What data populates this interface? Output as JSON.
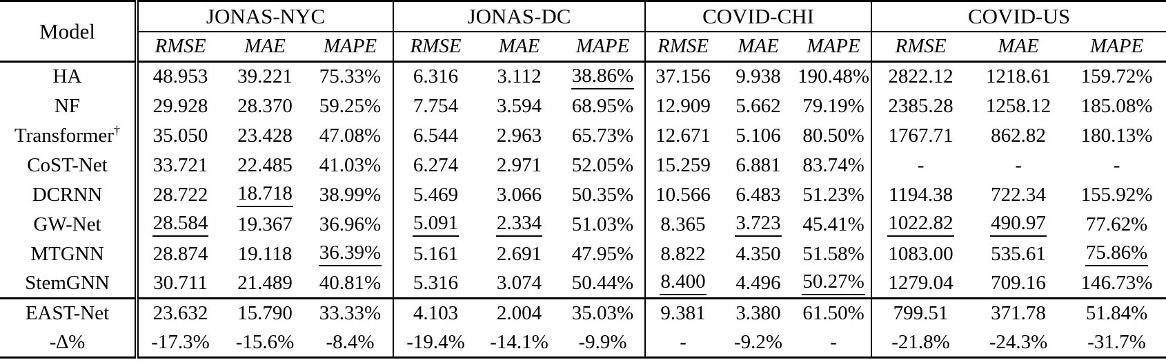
{
  "table": {
    "model_header": "Model",
    "groups": [
      {
        "name": "JONAS-NYC",
        "metrics": [
          "RMSE",
          "MAE",
          "MAPE"
        ]
      },
      {
        "name": "JONAS-DC",
        "metrics": [
          "RMSE",
          "MAE",
          "MAPE"
        ]
      },
      {
        "name": "COVID-CHI",
        "metrics": [
          "RMSE",
          "MAE",
          "MAPE"
        ]
      },
      {
        "name": "COVID-US",
        "metrics": [
          "RMSE",
          "MAE",
          "MAPE"
        ]
      }
    ],
    "rows": [
      {
        "model": "HA",
        "sup": "",
        "bold": false,
        "final": false,
        "cells": [
          {
            "t": "48.953"
          },
          {
            "t": "39.221"
          },
          {
            "t": "75.33%"
          },
          {
            "t": "6.316"
          },
          {
            "t": "3.112"
          },
          {
            "t": "38.86%",
            "u": true
          },
          {
            "t": "37.156"
          },
          {
            "t": "9.938"
          },
          {
            "t": "190.48%"
          },
          {
            "t": "2822.12"
          },
          {
            "t": "1218.61"
          },
          {
            "t": "159.72%"
          }
        ]
      },
      {
        "model": "NF",
        "sup": "",
        "bold": false,
        "final": false,
        "cells": [
          {
            "t": "29.928"
          },
          {
            "t": "28.370"
          },
          {
            "t": "59.25%"
          },
          {
            "t": "7.754"
          },
          {
            "t": "3.594"
          },
          {
            "t": "68.95%"
          },
          {
            "t": "12.909"
          },
          {
            "t": "5.662"
          },
          {
            "t": "79.19%"
          },
          {
            "t": "2385.28"
          },
          {
            "t": "1258.12"
          },
          {
            "t": "185.08%"
          }
        ]
      },
      {
        "model": "Transformer",
        "sup": "†",
        "bold": false,
        "final": false,
        "cells": [
          {
            "t": "35.050"
          },
          {
            "t": "23.428"
          },
          {
            "t": "47.08%"
          },
          {
            "t": "6.544"
          },
          {
            "t": "2.963"
          },
          {
            "t": "65.73%"
          },
          {
            "t": "12.671"
          },
          {
            "t": "5.106"
          },
          {
            "t": "80.50%"
          },
          {
            "t": "1767.71"
          },
          {
            "t": "862.82"
          },
          {
            "t": "180.13%"
          }
        ]
      },
      {
        "model": "CoST-Net",
        "sup": "",
        "bold": false,
        "final": false,
        "cells": [
          {
            "t": "33.721"
          },
          {
            "t": "22.485"
          },
          {
            "t": "41.03%"
          },
          {
            "t": "6.274"
          },
          {
            "t": "2.971"
          },
          {
            "t": "52.05%"
          },
          {
            "t": "15.259"
          },
          {
            "t": "6.881"
          },
          {
            "t": "83.74%"
          },
          {
            "t": "-"
          },
          {
            "t": "-"
          },
          {
            "t": "-"
          }
        ]
      },
      {
        "model": "DCRNN",
        "sup": "",
        "bold": false,
        "final": false,
        "cells": [
          {
            "t": "28.722"
          },
          {
            "t": "18.718",
            "u": true
          },
          {
            "t": "38.99%"
          },
          {
            "t": "5.469"
          },
          {
            "t": "3.066"
          },
          {
            "t": "50.35%"
          },
          {
            "t": "10.566"
          },
          {
            "t": "6.483"
          },
          {
            "t": "51.23%"
          },
          {
            "t": "1194.38"
          },
          {
            "t": "722.34"
          },
          {
            "t": "155.92%"
          }
        ]
      },
      {
        "model": "GW-Net",
        "sup": "",
        "bold": false,
        "final": false,
        "cells": [
          {
            "t": "28.584",
            "u": true
          },
          {
            "t": "19.367"
          },
          {
            "t": "36.96%"
          },
          {
            "t": "5.091",
            "u": true
          },
          {
            "t": "2.334",
            "u": true
          },
          {
            "t": "51.03%"
          },
          {
            "t": "8.365",
            "b": true
          },
          {
            "t": "3.723",
            "u": true
          },
          {
            "t": "45.41%",
            "b": true
          },
          {
            "t": "1022.82",
            "u": true
          },
          {
            "t": "490.97",
            "u": true
          },
          {
            "t": "77.62%"
          }
        ]
      },
      {
        "model": "MTGNN",
        "sup": "",
        "bold": false,
        "final": false,
        "cells": [
          {
            "t": "28.874"
          },
          {
            "t": "19.118"
          },
          {
            "t": "36.39%",
            "u": true
          },
          {
            "t": "5.161"
          },
          {
            "t": "2.691"
          },
          {
            "t": "47.95%"
          },
          {
            "t": "8.822"
          },
          {
            "t": "4.350"
          },
          {
            "t": "51.58%"
          },
          {
            "t": "1083.00"
          },
          {
            "t": "535.61"
          },
          {
            "t": "75.86%",
            "u": true
          }
        ]
      },
      {
        "model": "StemGNN",
        "sup": "",
        "bold": false,
        "final": false,
        "cells": [
          {
            "t": "30.711"
          },
          {
            "t": "21.489"
          },
          {
            "t": "40.81%"
          },
          {
            "t": "5.316"
          },
          {
            "t": "3.074"
          },
          {
            "t": "50.44%"
          },
          {
            "t": "8.400",
            "u": true
          },
          {
            "t": "4.496"
          },
          {
            "t": "50.27%",
            "u": true
          },
          {
            "t": "1279.04"
          },
          {
            "t": "709.16"
          },
          {
            "t": "146.73%"
          }
        ]
      },
      {
        "model": "EAST-Net",
        "sup": "",
        "bold": true,
        "final": true,
        "cells": [
          {
            "t": "23.632",
            "b": true
          },
          {
            "t": "15.790",
            "b": true
          },
          {
            "t": "33.33%",
            "b": true
          },
          {
            "t": "4.103",
            "b": true
          },
          {
            "t": "2.004",
            "b": true
          },
          {
            "t": "35.03%",
            "b": true
          },
          {
            "t": "9.381"
          },
          {
            "t": "3.380",
            "b": true
          },
          {
            "t": "61.50%"
          },
          {
            "t": "799.51",
            "b": true
          },
          {
            "t": "371.78",
            "b": true
          },
          {
            "t": "51.84%",
            "b": true
          }
        ]
      },
      {
        "model": "-∆%",
        "sup": "",
        "bold": false,
        "final": false,
        "cells": [
          {
            "t": "-17.3%"
          },
          {
            "t": "-15.6%"
          },
          {
            "t": "-8.4%"
          },
          {
            "t": "-19.4%"
          },
          {
            "t": "-14.1%"
          },
          {
            "t": "-9.9%"
          },
          {
            "t": "-"
          },
          {
            "t": "-9.2%"
          },
          {
            "t": "-"
          },
          {
            "t": "-21.8%"
          },
          {
            "t": "-24.3%"
          },
          {
            "t": "-31.7%"
          }
        ]
      }
    ]
  }
}
